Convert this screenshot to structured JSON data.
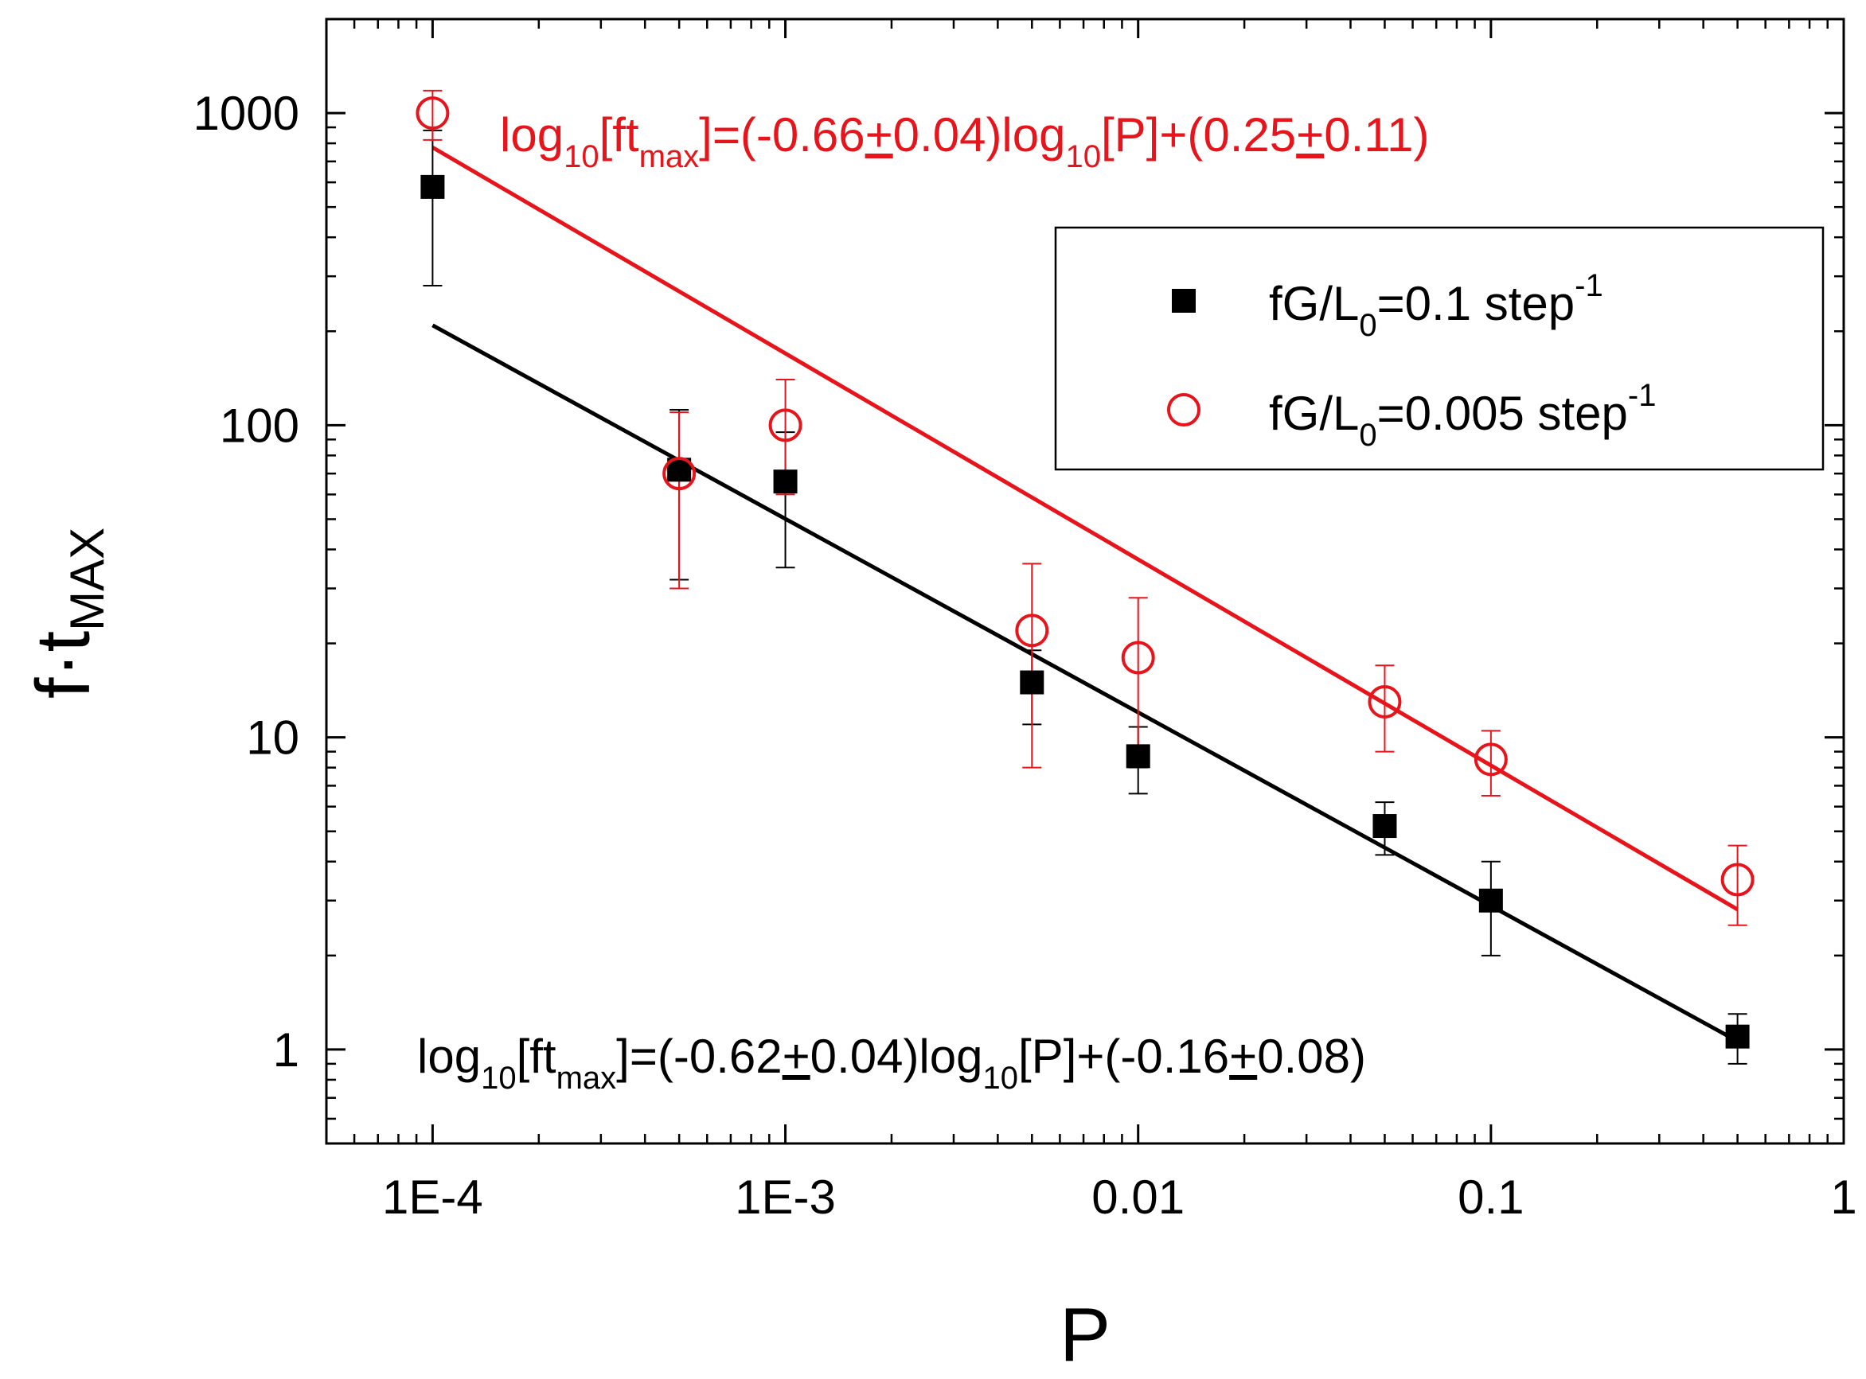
{
  "chart_data": {
    "type": "scatter",
    "title": "",
    "xlabel": "P",
    "ylabel": {
      "main": "f·t",
      "sub": "MAX"
    },
    "xscale": "log",
    "yscale": "log",
    "xlim": [
      5e-05,
      1
    ],
    "ylim": [
      0.5,
      2000
    ],
    "xticks": [
      {
        "value": 0.0001,
        "label": "1E-4"
      },
      {
        "value": 0.001,
        "label": "1E-3"
      },
      {
        "value": 0.01,
        "label": "0.01"
      },
      {
        "value": 0.1,
        "label": "0.1"
      },
      {
        "value": 1,
        "label": "1"
      }
    ],
    "yticks": [
      {
        "value": 1,
        "label": "1"
      },
      {
        "value": 10,
        "label": "10"
      },
      {
        "value": 100,
        "label": "100"
      },
      {
        "value": 1000,
        "label": "1000"
      }
    ],
    "grid": false,
    "legend_position": "top-right",
    "series": [
      {
        "id": "black",
        "name": {
          "pre": "fG/L",
          "sub": "0",
          "mid": "=0.1 step",
          "sup": "-1"
        },
        "color": "#000000",
        "marker": "filled-square",
        "points": [
          {
            "x": 0.0001,
            "y": 580,
            "ylow": 280,
            "yhigh": 880
          },
          {
            "x": 0.0005,
            "y": 72,
            "ylow": 32,
            "yhigh": 112
          },
          {
            "x": 0.001,
            "y": 66,
            "ylow": 35,
            "yhigh": 95
          },
          {
            "x": 0.005,
            "y": 15,
            "ylow": 11,
            "yhigh": 19
          },
          {
            "x": 0.01,
            "y": 8.7,
            "ylow": 6.6,
            "yhigh": 10.8
          },
          {
            "x": 0.05,
            "y": 5.2,
            "ylow": 4.2,
            "yhigh": 6.2
          },
          {
            "x": 0.1,
            "y": 3.0,
            "ylow": 2.0,
            "yhigh": 4.0
          },
          {
            "x": 0.5,
            "y": 1.1,
            "ylow": 0.9,
            "yhigh": 1.3
          }
        ],
        "fit": {
          "slope": -0.62,
          "intercept": -0.16,
          "x_range": [
            0.0001,
            0.5
          ]
        },
        "annotation": {
          "prefix": "log",
          "sub1": "10",
          "part1": "[ft",
          "sub2": "max",
          "part2": "]=(-0.62",
          "pm1": "+",
          "part3": "0.04)log",
          "sub3": "10",
          "part4": "[P]+(-0.16",
          "pm2": "+",
          "part5": "0.08)"
        }
      },
      {
        "id": "red",
        "name": {
          "pre": "fG/L",
          "sub": "0",
          "mid": "=0.005 step",
          "sup": "-1"
        },
        "color": "#e8141b",
        "marker": "open-circle",
        "points": [
          {
            "x": 0.0001,
            "y": 1000,
            "ylow": 820,
            "yhigh": 1180
          },
          {
            "x": 0.0005,
            "y": 70,
            "ylow": 30,
            "yhigh": 110
          },
          {
            "x": 0.001,
            "y": 100,
            "ylow": 60,
            "yhigh": 140
          },
          {
            "x": 0.005,
            "y": 22,
            "ylow": 8,
            "yhigh": 36
          },
          {
            "x": 0.01,
            "y": 18,
            "ylow": 8,
            "yhigh": 28
          },
          {
            "x": 0.05,
            "y": 13,
            "ylow": 9,
            "yhigh": 17
          },
          {
            "x": 0.1,
            "y": 8.5,
            "ylow": 6.5,
            "yhigh": 10.5
          },
          {
            "x": 0.5,
            "y": 3.5,
            "ylow": 2.5,
            "yhigh": 4.5
          }
        ],
        "fit": {
          "slope": -0.66,
          "intercept": 0.25,
          "x_range": [
            0.0001,
            0.5
          ]
        },
        "annotation": {
          "prefix": "log",
          "sub1": "10",
          "part1": "[ft",
          "sub2": "max",
          "part2": "]=(-0.66",
          "pm1": "+",
          "part3": "0.04)log",
          "sub3": "10",
          "part4": "[P]+(0.25",
          "pm2": "+",
          "part5": "0.11)"
        }
      }
    ]
  }
}
